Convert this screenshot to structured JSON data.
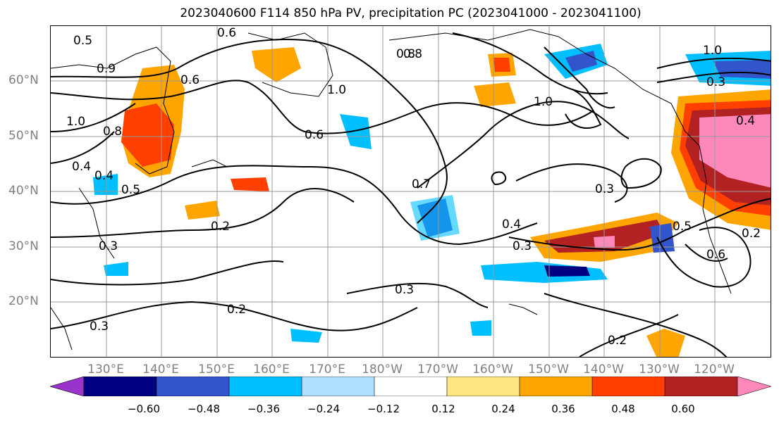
{
  "title": "2023040600 F114 850 hPa PV, precipitation PC (2023041000 - 2023041100)",
  "lat_labels": [
    "60°N",
    "50°N",
    "40°N",
    "30°N",
    "20°N"
  ],
  "lon_labels": [
    "130°E",
    "140°E",
    "150°E",
    "160°E",
    "170°E",
    "180°W",
    "170°W",
    "160°W",
    "150°W",
    "140°W",
    "130°W",
    "120°W"
  ],
  "colorbar": {
    "ticks": [
      "−0.60",
      "−0.48",
      "−0.36",
      "−0.24",
      "−0.12",
      "0.12",
      "0.24",
      "0.36",
      "0.48",
      "0.60"
    ],
    "colors": [
      "#9933cc",
      "#000080",
      "#3355cc",
      "#00bfff",
      "#b0e0ff",
      "#ffffff",
      "#ffe680",
      "#ffa500",
      "#ff4000",
      "#b22222",
      "#ff88bb"
    ]
  },
  "contour_labels": [
    "0.5",
    "0.6",
    "0.8",
    "0.9",
    "0.6",
    "1.0",
    "0.8",
    "1.0",
    "1.0",
    "0.8",
    "0.6",
    "0.4",
    "0.4",
    "0.5",
    "0.2",
    "0.3",
    "0.7",
    "0.4",
    "0.3",
    "0.3",
    "0.5",
    "0.6",
    "0.3",
    "0.2",
    "0.3",
    "0.2",
    "1.0",
    "0.3",
    "0.4",
    "0.2"
  ]
}
